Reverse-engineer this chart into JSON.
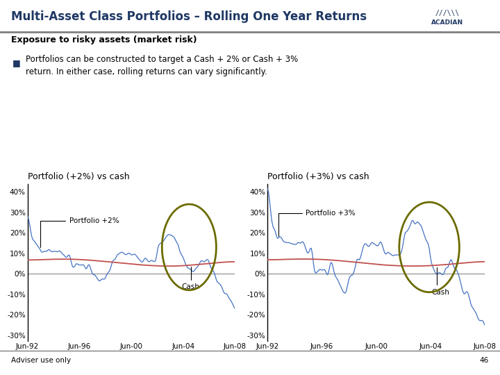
{
  "title": "Multi-Asset Class Portfolios – Rolling One Year Returns",
  "subtitle": "Exposure to risky assets (market risk)",
  "bullet_text": "Portfolios can be constructed to target a Cash + 2% or Cash + 3%\nreturn. In either case, rolling returns can vary significantly.",
  "chart1_title": "Portfolio (+2%) vs cash",
  "chart2_title": "Portfolio (+3%) vs cash",
  "x_labels": [
    "Jun-92",
    "Jun-96",
    "Jun-00",
    "Jun-04",
    "Jun-08"
  ],
  "y_ticks": [
    -0.3,
    -0.2,
    -0.1,
    0.0,
    0.1,
    0.2,
    0.3,
    0.4
  ],
  "y_tick_labels": [
    "-30%",
    "-20%",
    "-10%",
    "0%",
    "10%",
    "20%",
    "30%",
    "40%"
  ],
  "ylim": [
    -0.33,
    0.44
  ],
  "portfolio_color": "#4472C4",
  "cash_color": "#C0504D",
  "ellipse_color": "#6B6B00",
  "title_color": "#1F3864",
  "subtitle_color": "#000000",
  "background_color": "#FFFFFF",
  "header_line_color": "#7F7F7F",
  "footer_text": "Adviser use only",
  "page_number": "46",
  "n_points": 200
}
